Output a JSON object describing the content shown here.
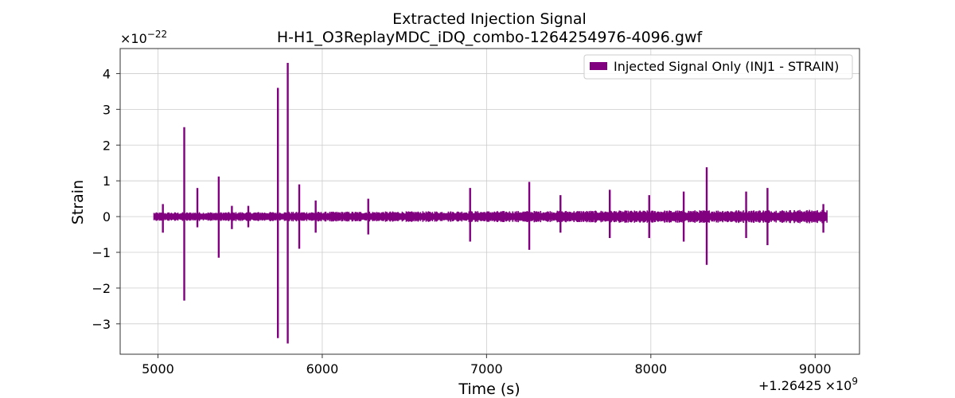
{
  "chart_data": {
    "type": "line",
    "title": "Extracted Injection Signal",
    "subtitle": "H-H1_O3ReplayMDC_iDQ_combo-1264254976-4096.gwf",
    "xlabel": "Time (s)",
    "ylabel": "Strain",
    "x_offset_label": "+1.26425",
    "x_offset_exp_base": "×10",
    "x_offset_exp": "9",
    "y_scale_base": "×10",
    "y_scale_exp": "−22",
    "xlim": [
      4770,
      9270
    ],
    "ylim": [
      -3.85,
      4.7
    ],
    "x_ticks": [
      5000,
      6000,
      7000,
      8000,
      9000
    ],
    "x_tick_labels": [
      "5000",
      "6000",
      "7000",
      "8000",
      "9000"
    ],
    "y_ticks": [
      -3,
      -2,
      -1,
      0,
      1,
      2,
      3,
      4
    ],
    "y_tick_labels": [
      "−3",
      "−2",
      "−1",
      "0",
      "1",
      "2",
      "3",
      "4"
    ],
    "grid": true,
    "legend_position": "top-right",
    "series": [
      {
        "name": "Injected Signal Only (INJ1 - STRAIN)",
        "color": "#800080",
        "x_range": [
          4976,
          9072
        ],
        "baseline_amplitude": 0.12,
        "spikes": [
          {
            "x": 5030,
            "max": 0.35,
            "min": -0.45
          },
          {
            "x": 5160,
            "max": 2.5,
            "min": -2.35
          },
          {
            "x": 5240,
            "max": 0.8,
            "min": -0.3
          },
          {
            "x": 5370,
            "max": 1.12,
            "min": -1.15
          },
          {
            "x": 5450,
            "max": 0.3,
            "min": -0.35
          },
          {
            "x": 5550,
            "max": 0.3,
            "min": -0.3
          },
          {
            "x": 5730,
            "max": 3.6,
            "min": -3.4
          },
          {
            "x": 5790,
            "max": 4.3,
            "min": -3.55
          },
          {
            "x": 5860,
            "max": 0.9,
            "min": -0.9
          },
          {
            "x": 5960,
            "max": 0.45,
            "min": -0.45
          },
          {
            "x": 6280,
            "max": 0.5,
            "min": -0.5
          },
          {
            "x": 6900,
            "max": 0.8,
            "min": -0.7
          },
          {
            "x": 7260,
            "max": 0.97,
            "min": -0.93
          },
          {
            "x": 7450,
            "max": 0.6,
            "min": -0.45
          },
          {
            "x": 7750,
            "max": 0.75,
            "min": -0.6
          },
          {
            "x": 7990,
            "max": 0.6,
            "min": -0.6
          },
          {
            "x": 8200,
            "max": 0.7,
            "min": -0.7
          },
          {
            "x": 8340,
            "max": 1.38,
            "min": -1.35
          },
          {
            "x": 8580,
            "max": 0.7,
            "min": -0.6
          },
          {
            "x": 8710,
            "max": 0.8,
            "min": -0.8
          },
          {
            "x": 9050,
            "max": 0.35,
            "min": -0.45
          }
        ]
      }
    ]
  }
}
